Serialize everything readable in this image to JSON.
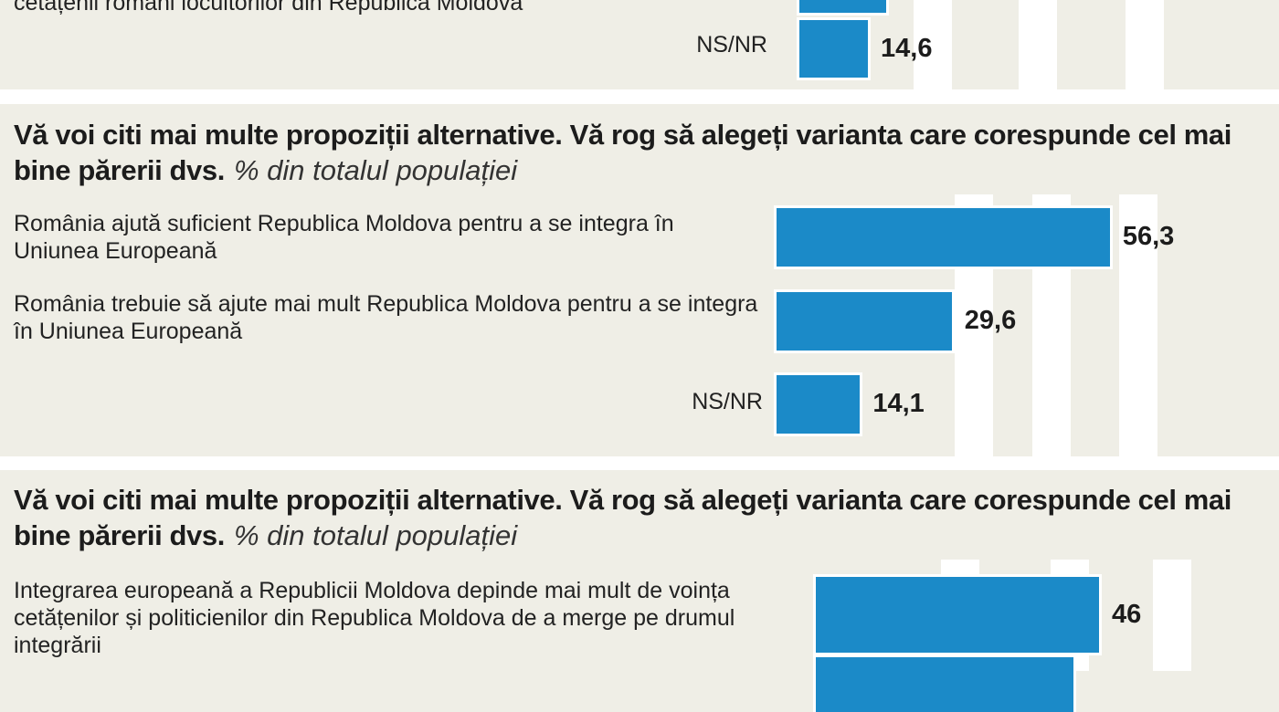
{
  "chart_data": [
    {
      "type": "bar",
      "orientation": "horizontal",
      "color": "#1b8ac8",
      "categories": [
        "cetățenii români locuitorilor din Republica Moldova",
        "NS/NR"
      ],
      "values": [
        18.5,
        14.6
      ],
      "value_labels": [
        null,
        "14,6"
      ]
    },
    {
      "type": "bar",
      "orientation": "horizontal",
      "color": "#1b8ac8",
      "title": "Vă voi citi mai multe propoziții alternative. Vă rog să alegeți varianta care corespunde cel mai bine părerii dvs.",
      "subtitle": "% din totalul populației",
      "categories": [
        "România ajută suficient Republica Moldova pentru a se integra în Uniunea Europeană",
        "România trebuie să ajute mai mult Republica Moldova pentru a se integra în Uniunea Europeană",
        "NS/NR"
      ],
      "values": [
        56.3,
        29.6,
        14.1
      ],
      "value_labels": [
        "56,3",
        "29,6",
        "14,1"
      ]
    },
    {
      "type": "bar",
      "orientation": "horizontal",
      "color": "#1b8ac8",
      "title": "Vă voi citi mai multe propoziții alternative. Vă rog să alegeți varianta care corespunde cel mai bine părerii dvs.",
      "subtitle": "% din totalul populației",
      "categories": [
        "Integrarea europeană a Republicii Moldova depinde mai mult de voința cetățenilor și politicienilor din Republica Moldova de a merge pe drumul integrării",
        null
      ],
      "values": [
        46,
        41.8
      ],
      "value_labels": [
        "46",
        null
      ]
    }
  ]
}
